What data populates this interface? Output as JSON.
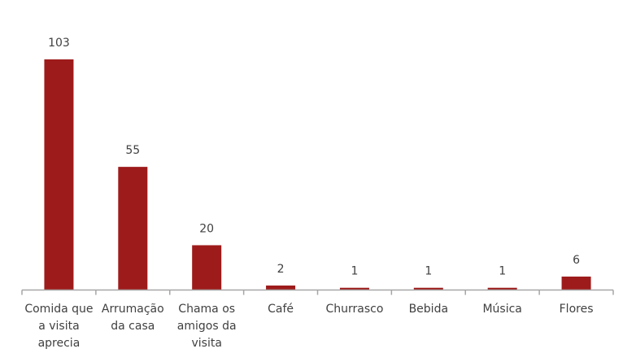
{
  "chart_data": {
    "type": "bar",
    "categories": [
      "Comida que a visita aprecia",
      "Arrumação da casa",
      "Chama os amigos da visita",
      "Café",
      "Churrasco",
      "Bebida",
      "Música",
      "Flores"
    ],
    "category_lines": [
      [
        "Comida que",
        "a visita",
        "aprecia"
      ],
      [
        "Arrumação",
        "da casa"
      ],
      [
        "Chama os",
        "amigos da",
        "visita"
      ],
      [
        "Café"
      ],
      [
        "Churrasco"
      ],
      [
        "Bebida"
      ],
      [
        "Música"
      ],
      [
        "Flores"
      ]
    ],
    "values": [
      103,
      55,
      20,
      2,
      1,
      1,
      1,
      6
    ],
    "data_labels": [
      "103",
      "55",
      "20",
      "2",
      "1",
      "1",
      "1",
      "6"
    ],
    "title": "",
    "xlabel": "",
    "ylabel": "",
    "ylim": [
      0,
      103
    ],
    "grid": false,
    "legend": "none",
    "bar_color": "#9e1b1b",
    "axis_color": "#a6a6a6",
    "text_color": "#404040"
  }
}
